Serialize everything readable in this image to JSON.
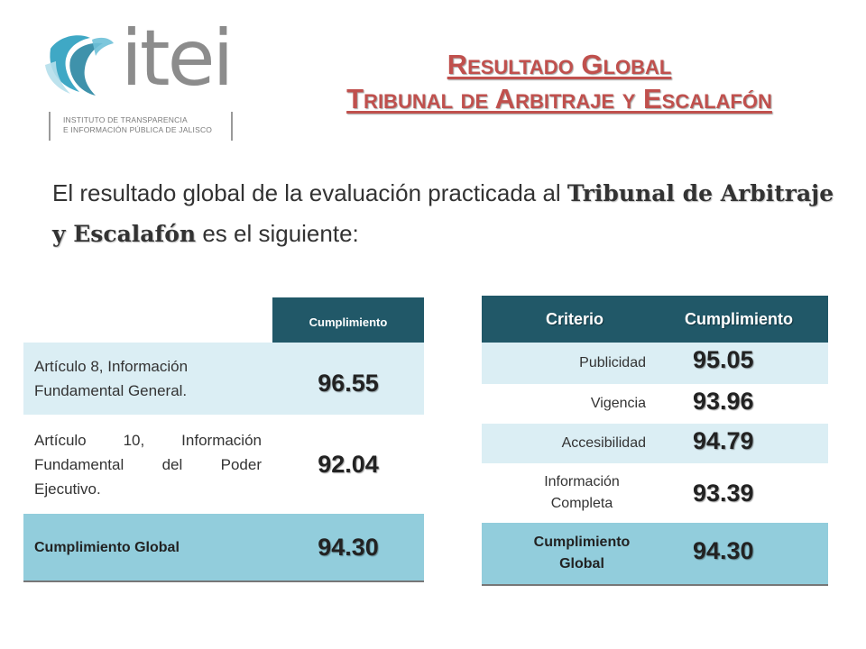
{
  "logo": {
    "word": "itei",
    "subtitle_line1": "INSTITUTO DE TRANSPARENCIA",
    "subtitle_line2": "E INFORMACIÓN PÚBLICA DE JALISCO",
    "colors": {
      "teal": "#2a9fbf",
      "gray": "#8c8c8c"
    }
  },
  "title": {
    "line1": "Resultado Global",
    "line2": "Tribunal de Arbitraje y Escalafón",
    "color": "#c0504d"
  },
  "intro": {
    "text_before": "El resultado global de la evaluación practicada al ",
    "bold": "Tribunal de Arbitraje y Escalafón",
    "text_after": " es el siguiente:"
  },
  "table_left": {
    "header": "Cumplimiento",
    "rows": [
      {
        "label": "Artículo 8, Información Fundamental  General.",
        "value": "96.55"
      },
      {
        "label": "Artículo 10, Información Fundamental del Poder Ejecutivo.",
        "value": "92.04"
      },
      {
        "label": "Cumplimiento Global",
        "value": "94.30"
      }
    ]
  },
  "table_right": {
    "headers": [
      "Criterio",
      "Cumplimiento"
    ],
    "rows": [
      {
        "label": "Publicidad",
        "value": "95.05"
      },
      {
        "label": "Vigencia",
        "value": "93.96"
      },
      {
        "label": "Accesibilidad",
        "value": "94.79"
      },
      {
        "label": "Información Completa",
        "value": "93.39"
      },
      {
        "label": "Cumplimiento Global",
        "value": "94.30"
      }
    ]
  },
  "colors": {
    "header_bg": "#215868",
    "row_light": "#dbeef4",
    "row_total": "#92cddc"
  }
}
